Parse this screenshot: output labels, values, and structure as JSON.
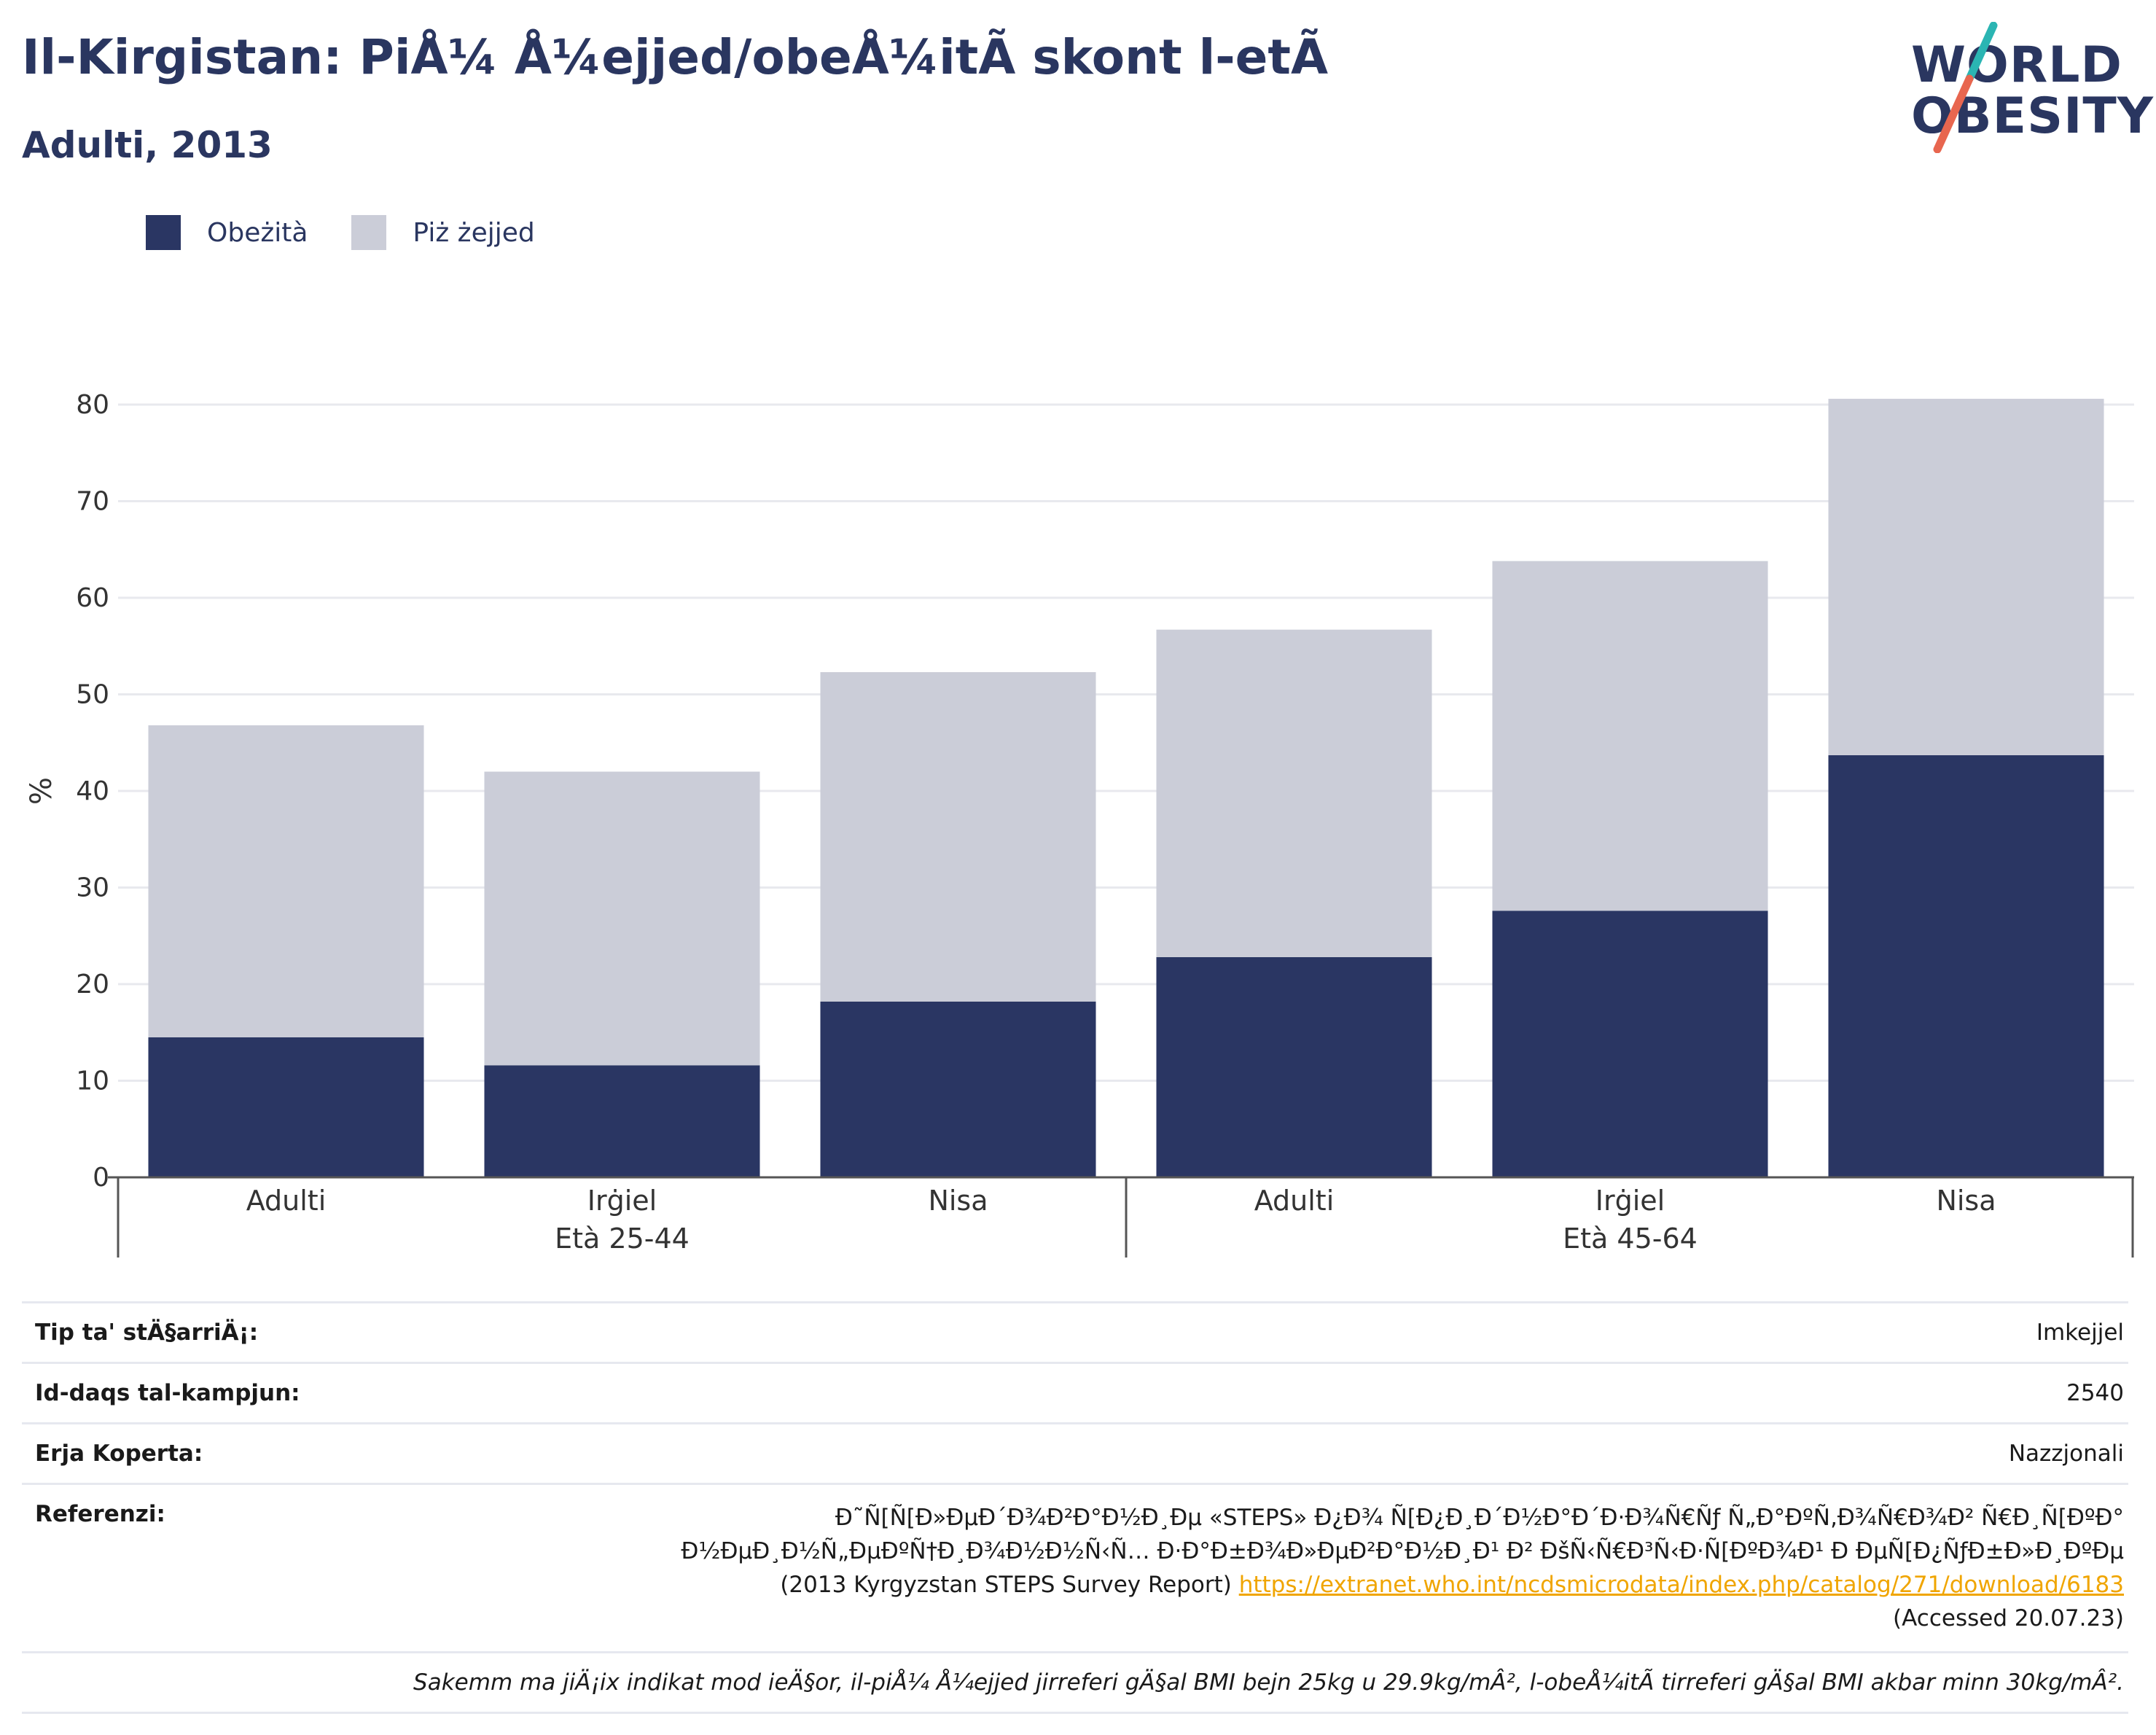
{
  "header": {
    "title": "Il-Kirgistan: PiÅ¼ Å¼ejjed/obeÅ¼itÃ  skont l-etÃ",
    "subtitle": "Adulti, 2013"
  },
  "logo": {
    "line1": "WORLD",
    "line2": "OBESITY"
  },
  "colors": {
    "obesity": "#2a3663",
    "overweight": "#cbcdd8",
    "accent_teal": "#2bb5b3",
    "accent_coral": "#e8664f"
  },
  "legend": [
    {
      "label": "Obeżità",
      "color": "#2a3663"
    },
    {
      "label": "Piż żejjed",
      "color": "#cbcdd8"
    }
  ],
  "chart_data": {
    "type": "bar",
    "stacked": true,
    "ylabel": "%",
    "ylim": [
      0,
      80
    ],
    "yticks": [
      0,
      10,
      20,
      30,
      40,
      50,
      60,
      70,
      80
    ],
    "grid": true,
    "legend_position": "top-left",
    "groups": [
      {
        "label": "Età 25-44",
        "categories": [
          "Adulti",
          "Irġiel",
          "Nisa"
        ]
      },
      {
        "label": "Età 45-64",
        "categories": [
          "Adulti",
          "Irġiel",
          "Nisa"
        ]
      }
    ],
    "categories": [
      "Adulti",
      "Irġiel",
      "Nisa",
      "Adulti",
      "Irġiel",
      "Nisa"
    ],
    "series": [
      {
        "name": "Obeżità",
        "values": [
          14.5,
          11.6,
          18.2,
          22.8,
          27.6,
          43.7
        ]
      },
      {
        "name": "Piż żejjed",
        "values": [
          32.3,
          30.4,
          34.1,
          33.9,
          36.2,
          36.9
        ]
      }
    ]
  },
  "info": {
    "survey_type_label": "Tip ta' stÄ§arriÄ¡:",
    "survey_type_value": "Imkejjel",
    "sample_size_label": "Id-daqs tal-kampjun:",
    "sample_size_value": "2540",
    "coverage_label": "Erja Koperta:",
    "coverage_value": "Nazzjonali",
    "references_label": "Referenzi:",
    "references_text_1": "Ð˜Ñ[Ñ[Ð»ÐµÐ´Ð¾Ð²Ð°Ð½Ð¸Ðµ «STEPS» Ð¿Ð¾ Ñ[Ð¿Ð¸Ð´Ð½Ð°Ð´Ð·Ð¾Ñ€Ñƒ Ñ„Ð°ÐºÑ‚Ð¾Ñ€Ð¾Ð² Ñ€Ð¸Ñ[ÐºÐ° Ð½ÐµÐ¸Ð½Ñ„ÐµÐºÑ†Ð¸Ð¾Ð½Ð½Ñ‹Ñ… Ð·Ð°Ð±Ð¾Ð»ÐµÐ²Ð°Ð½Ð¸Ð¹ Ð² ÐšÑ‹Ñ€Ð³Ñ‹Ð·Ñ[ÐºÐ¾Ð¹ Ð ÐµÑ[Ð¿ÑƒÐ±Ð»Ð¸ÐºÐµ (2013 Kyrgyzstan STEPS Survey Report)",
    "references_link": "https://extranet.who.int/ncdsmicrodata/index.php/catalog/271/download/6183",
    "references_accessed": "(Accessed 20.07.23)",
    "note": "Sakemm ma jiÄ¡ix indikat mod ieÄ§or, il-piÅ¼ Å¼ejjed jirreferi gÄ§al BMI bejn 25kg u 29.9kg/mÂ², l-obeÅ¼itÃ  tirreferi gÄ§al BMI akbar minn 30kg/mÂ²."
  }
}
